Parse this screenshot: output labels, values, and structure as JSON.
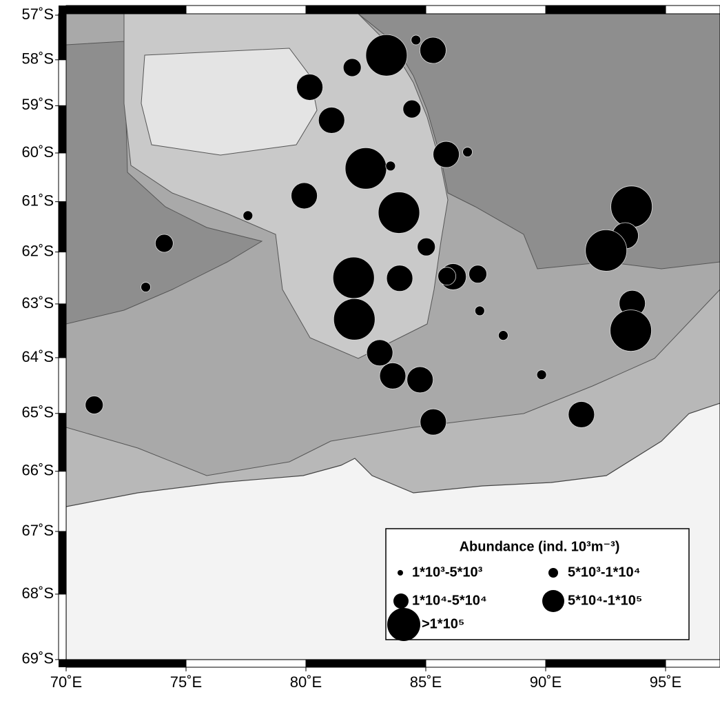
{
  "map": {
    "lon_ticks": [
      {
        "value": 70,
        "label": "70˚E"
      },
      {
        "value": 75,
        "label": "75˚E"
      },
      {
        "value": 80,
        "label": "80˚E"
      },
      {
        "value": 85,
        "label": "85˚E"
      },
      {
        "value": 90,
        "label": "90˚E"
      },
      {
        "value": 95,
        "label": "95˚E"
      }
    ],
    "lat_ticks": [
      {
        "value": 57,
        "label": "57˚S"
      },
      {
        "value": 58,
        "label": "58˚S"
      },
      {
        "value": 59,
        "label": "59˚S"
      },
      {
        "value": 60,
        "label": "60˚S"
      },
      {
        "value": 61,
        "label": "61˚S"
      },
      {
        "value": 62,
        "label": "62˚S"
      },
      {
        "value": 63,
        "label": "63˚S"
      },
      {
        "value": 64,
        "label": "64˚S"
      },
      {
        "value": 65,
        "label": "65˚S"
      },
      {
        "value": 66,
        "label": "66˚S"
      },
      {
        "value": 67,
        "label": "67˚S"
      },
      {
        "value": 68,
        "label": "68˚S"
      },
      {
        "value": 69,
        "label": "69˚S"
      }
    ],
    "legend": {
      "title": "Abundance (ind. 10³m⁻³)",
      "classes": [
        "1*10³-5*10³",
        "5*10³-1*10⁴",
        "1*10⁴-5*10⁴",
        "5*10⁴-1*10⁵",
        ">1*10⁵"
      ]
    },
    "stations": {
      "lon": [
        83.36,
        84.59,
        85.3,
        81.93,
        80.16,
        84.42,
        81.07,
        82.5,
        83.53,
        85.85,
        86.74,
        79.93,
        77.58,
        83.88,
        74.09,
        85.02,
        93.58,
        93.32,
        92.52,
        81.99,
        83.91,
        86.14,
        85.88,
        87.17,
        73.32,
        93.61,
        82.02,
        87.25,
        93.55,
        88.23,
        83.08,
        83.62,
        84.76,
        89.83,
        71.17,
        91.49,
        85.31
      ],
      "lat": [
        57.9,
        57.56,
        57.79,
        58.17,
        58.6,
        59.07,
        59.31,
        60.32,
        60.27,
        60.03,
        59.98,
        60.88,
        61.28,
        61.22,
        61.83,
        61.9,
        61.1,
        61.68,
        61.97,
        62.5,
        62.51,
        62.48,
        62.47,
        62.43,
        62.68,
        62.99,
        63.29,
        63.13,
        63.5,
        63.59,
        63.91,
        64.33,
        64.4,
        64.31,
        64.85,
        65.02,
        65.15
      ],
      "class": [
        4,
        1,
        3,
        2,
        3,
        2,
        3,
        4,
        1,
        3,
        1,
        3,
        1,
        4,
        2,
        2,
        4,
        3,
        4,
        4,
        3,
        3,
        2,
        2,
        1,
        3,
        4,
        1,
        4,
        1,
        3,
        3,
        3,
        1,
        2,
        3,
        3
      ]
    }
  }
}
